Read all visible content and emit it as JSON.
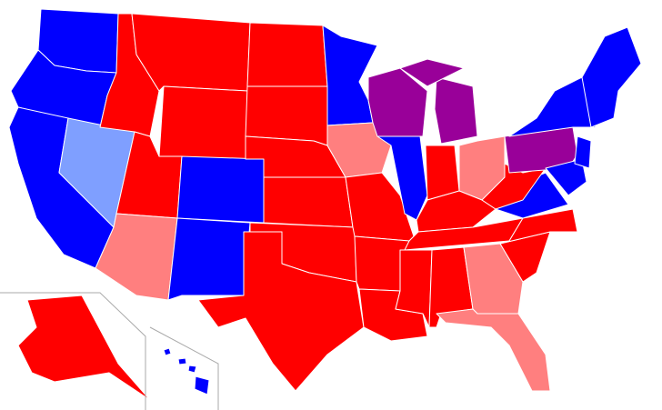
{
  "map": {
    "palette": [
      "#0000ff",
      "#ff0000",
      "#ff7f7f",
      "#7f9fff",
      "#990099"
    ]
  }
}
